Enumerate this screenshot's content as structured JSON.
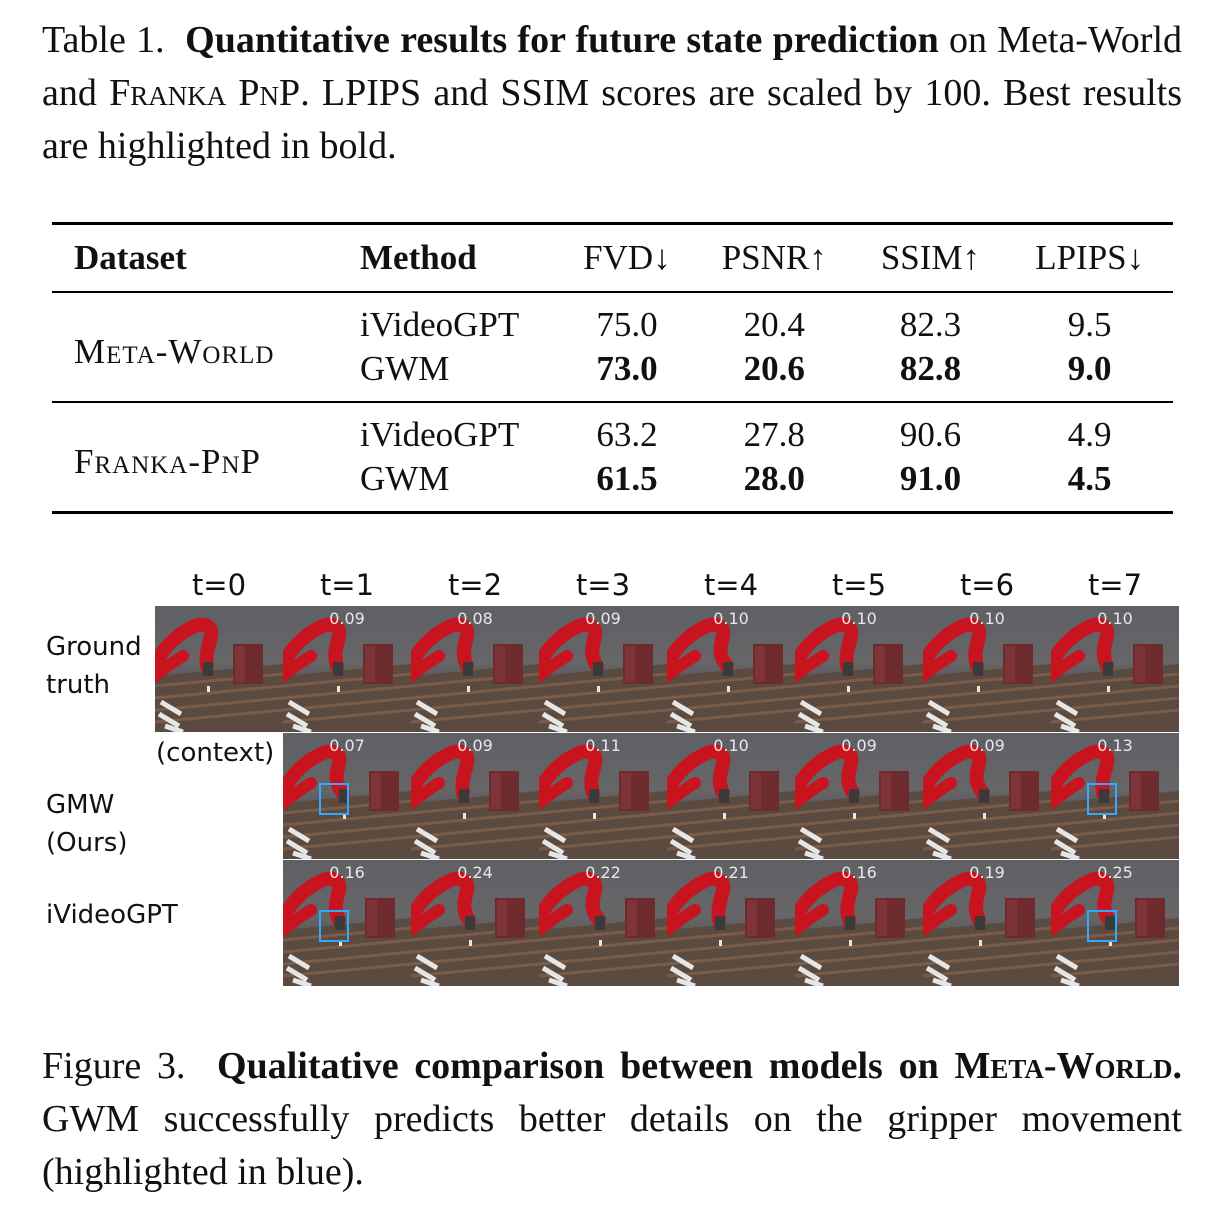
{
  "table": {
    "caption_label": "Table 1.",
    "caption_bold": "Quantitative results for future state prediction",
    "caption_rest_1": "on Meta-World and",
    "caption_dataset_sc": "Franka PnP",
    "caption_rest_2": ". LPIPS and SSIM scores are scaled by 100. Best results are highlighted in bold.",
    "headers": {
      "dataset": "Dataset",
      "method": "Method",
      "fvd": "FVD↓",
      "psnr": "PSNR↑",
      "ssim": "SSIM↑",
      "lpips": "LPIPS↓"
    },
    "groups": [
      {
        "dataset": "Meta-World",
        "rows": [
          {
            "method": "iVideoGPT",
            "fvd": "75.0",
            "psnr": "20.4",
            "ssim": "82.3",
            "lpips": "9.5"
          },
          {
            "method": "GWM",
            "fvd": "73.0",
            "psnr": "20.6",
            "ssim": "82.8",
            "lpips": "9.0"
          }
        ]
      },
      {
        "dataset": "Franka-PnP",
        "rows": [
          {
            "method": "iVideoGPT",
            "fvd": "63.2",
            "psnr": "27.8",
            "ssim": "90.6",
            "lpips": "4.9"
          },
          {
            "method": "GWM",
            "fvd": "61.5",
            "psnr": "28.0",
            "ssim": "91.0",
            "lpips": "4.5"
          }
        ]
      }
    ]
  },
  "figure": {
    "time_labels": [
      "t=0",
      "t=1",
      "t=2",
      "t=3",
      "t=4",
      "t=5",
      "t=6",
      "t=7"
    ],
    "row_labels": {
      "ground_truth": [
        "Ground",
        "truth"
      ],
      "gmw": [
        "GMW",
        "(Ours)"
      ],
      "ivideogpt": [
        "iVideoGPT"
      ]
    },
    "context_label": "(context)",
    "scores": {
      "ground_truth": [
        "0.09",
        "0.08",
        "0.09",
        "0.10",
        "0.10",
        "0.10",
        "0.10"
      ],
      "gmw": [
        "0.07",
        "0.09",
        "0.11",
        "0.10",
        "0.09",
        "0.09",
        "0.13"
      ],
      "ivideogpt": [
        "0.16",
        "0.24",
        "0.22",
        "0.21",
        "0.16",
        "0.19",
        "0.25"
      ]
    },
    "highlight_color": "#33a8ff",
    "robot_color": "#c8141e",
    "caption_label": "Figure 3.",
    "caption_bold": "Qualitative comparison between models on",
    "caption_bold_sc": "Meta-World.",
    "caption_rest": "GWM successfully predicts better details on the gripper movement (highlighted in blue)."
  }
}
